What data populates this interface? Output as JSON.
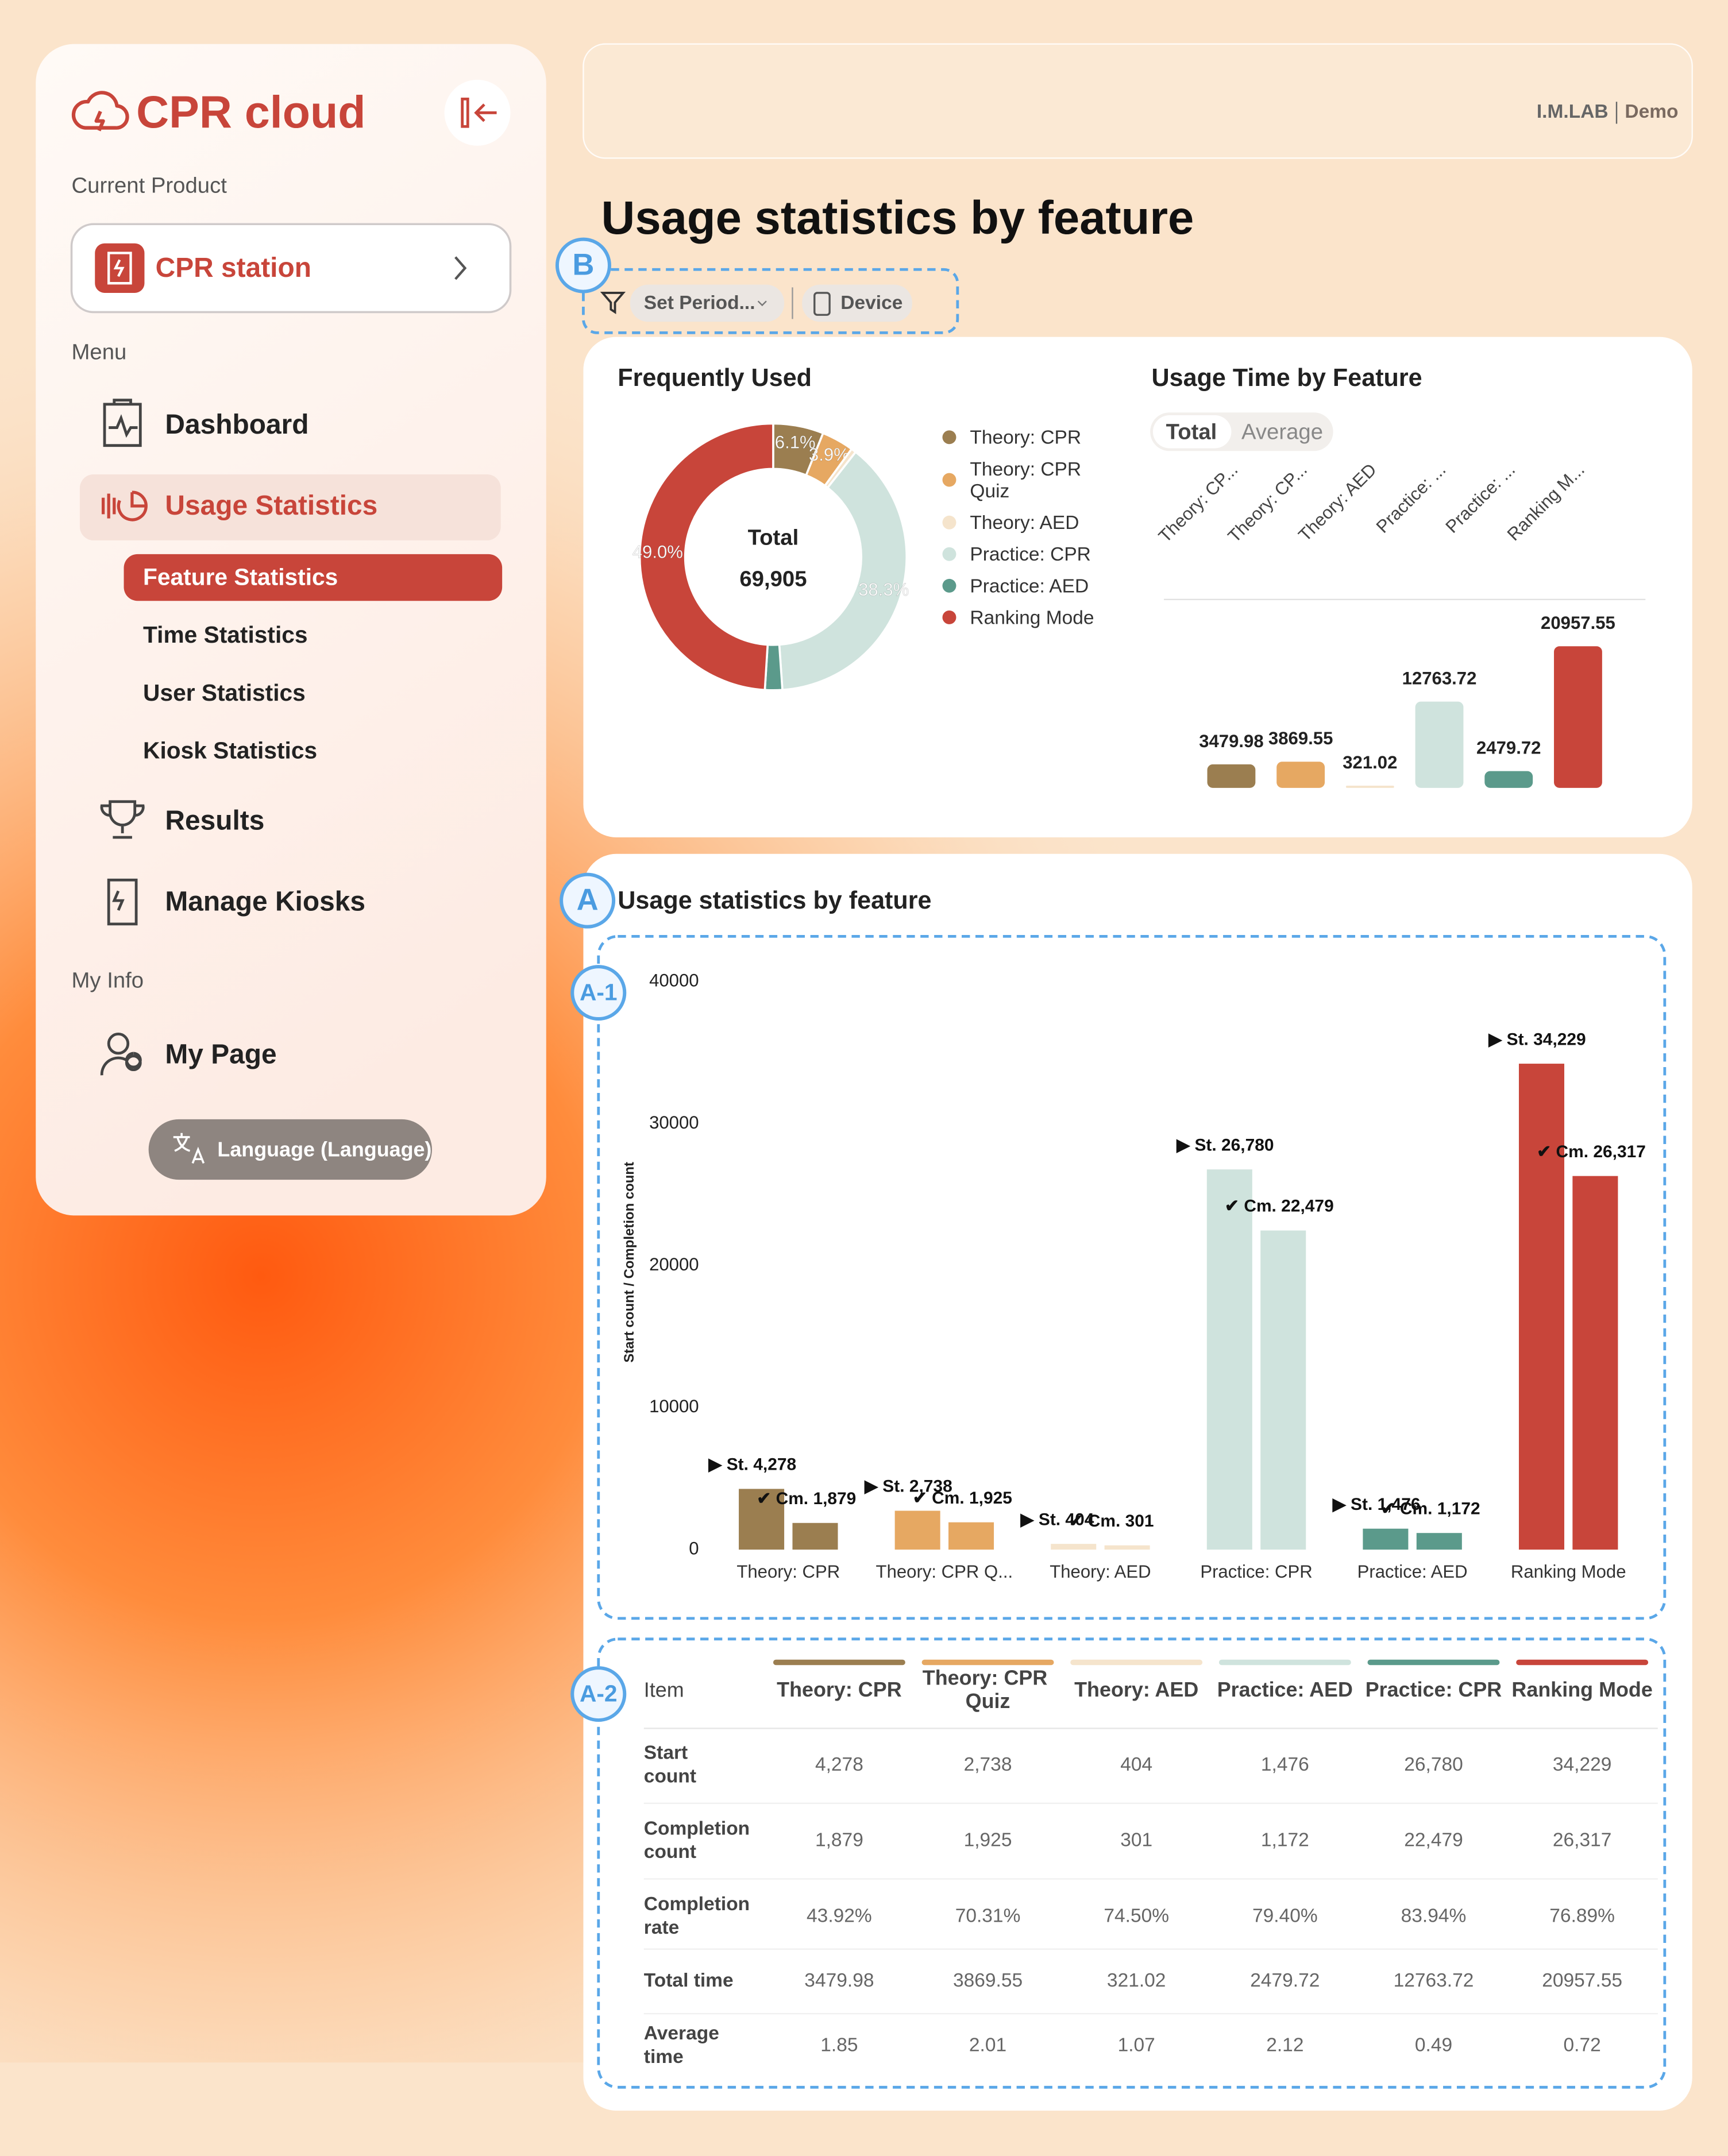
{
  "sidebar": {
    "logo": "CPR cloud",
    "current_product_label": "Current Product",
    "product": "CPR station",
    "menu_label": "Menu",
    "menu": [
      {
        "label": "Dashboard"
      },
      {
        "label": "Usage Statistics",
        "children": [
          "Feature Statistics",
          "Time Statistics",
          "User Statistics",
          "Kiosk Statistics"
        ]
      },
      {
        "label": "Results"
      },
      {
        "label": "Manage Kiosks"
      }
    ],
    "my_info_label": "My Info",
    "my_page": "My Page",
    "language": "Language (Language)"
  },
  "header": {
    "company": "I.M.LAB",
    "user": "Demo"
  },
  "page_title": "Usage statistics by feature",
  "filters": [
    "Set Period...",
    "Device"
  ],
  "annotations": {
    "filters": "B",
    "section": "A",
    "chart": "A-1",
    "table": "A-2"
  },
  "chart_data": [
    {
      "type": "pie",
      "title": "Frequently Used",
      "center_label": "Total",
      "center_value": "69,905",
      "categories": [
        "Theory: CPR",
        "Theory: CPR Quiz",
        "Theory: AED",
        "Practice: CPR",
        "Practice: AED",
        "Ranking Mode"
      ],
      "values": [
        6.1,
        3.9,
        0.6,
        38.3,
        2.1,
        49.0
      ],
      "value_labels": [
        "6.1%",
        "3.9%",
        null,
        "38.3%",
        null,
        "49.0%"
      ],
      "colors": [
        "#9b7e50",
        "#e6a862",
        "#f5e4cc",
        "#cfe3dd",
        "#5b9a8b",
        "#c8453a"
      ]
    },
    {
      "type": "bar",
      "title": "Usage Time by Feature",
      "toggle": [
        "Total",
        "Average"
      ],
      "categories": [
        "Theory: CP...",
        "Theory: CP...",
        "Theory: AED",
        "Practice: ...",
        "Practice: ...",
        "Ranking M..."
      ],
      "values": [
        3479.98,
        3869.55,
        321.02,
        12763.72,
        2479.72,
        20957.55
      ],
      "colors": [
        "#9b7e50",
        "#e6a862",
        "#f5e4cc",
        "#cfe3dd",
        "#5b9a8b",
        "#c8453a"
      ]
    },
    {
      "type": "grouped_bar",
      "title": "Usage statistics by feature",
      "y_label": "Start count / Completion count",
      "categories": [
        "Theory: CPR",
        "Theory: CPR Q...",
        "Theory: AED",
        "Practice: CPR",
        "Practice: AED",
        "Ranking Mode"
      ],
      "colors": [
        "#9b7e50",
        "#e6a862",
        "#f5e4cc",
        "#cfe3dd",
        "#5b9a8b",
        "#c8453a"
      ],
      "series": [
        {
          "values": [
            4278,
            2738,
            404,
            26780,
            1476,
            34229
          ],
          "value_labels": [
            "▶ St. 4,278",
            "▶ St. 2,738",
            "▶ St. 404",
            "▶ St. 26,780",
            "▶ St. 1,476",
            "▶ St. 34,229"
          ]
        },
        {
          "values": [
            1879,
            1925,
            301,
            22479,
            1172,
            26317
          ],
          "value_labels": [
            "✔ Cm. 1,879",
            "✔ Cm. 1,925",
            "✔ Cm. 301",
            "✔ Cm. 22,479",
            "✔ Cm. 1,172",
            "✔ Cm. 26,317"
          ]
        }
      ],
      "ylim": [
        0,
        40000
      ],
      "yticks": [
        0,
        10000,
        20000,
        30000,
        40000
      ]
    }
  ],
  "table": {
    "header": [
      "Item",
      "Theory: CPR",
      "Theory: CPR Quiz",
      "Theory: AED",
      "Practice: AED",
      "Practice: CPR",
      "Ranking Mode"
    ],
    "column_colors": [
      "#9b7e50",
      "#e6a862",
      "#f5e4cc",
      "#cfe3dd",
      "#5b9a8b",
      "#c8453a"
    ],
    "rows": [
      [
        "Start count",
        "4,278",
        "2,738",
        "404",
        "1,476",
        "26,780",
        "34,229"
      ],
      [
        "Completion count",
        "1,879",
        "1,925",
        "301",
        "1,172",
        "22,479",
        "26,317"
      ],
      [
        "Completion rate",
        "43.92%",
        "70.31%",
        "74.50%",
        "79.40%",
        "83.94%",
        "76.89%"
      ],
      [
        "Total time",
        "3479.98",
        "3869.55",
        "321.02",
        "2479.72",
        "12763.72",
        "20957.55"
      ],
      [
        "Average time",
        "1.85",
        "2.01",
        "1.07",
        "2.12",
        "0.49",
        "0.72"
      ]
    ]
  }
}
